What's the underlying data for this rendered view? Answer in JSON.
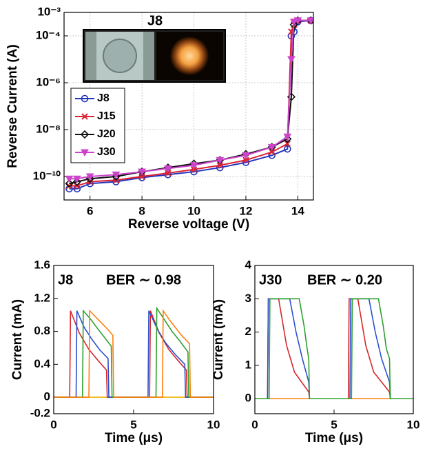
{
  "chart_data": [
    {
      "type": "line",
      "ylabel": "Reverse Current (A)",
      "xlabel": "Reverse voltage (V)",
      "inset_label": "J8",
      "log_y": true,
      "grid": true,
      "legend": "upper left",
      "xlim": [
        5,
        14.6
      ],
      "xticks": [
        6,
        8,
        10,
        12,
        14
      ],
      "ylim": [
        1e-11,
        0.001
      ],
      "yticks": [
        {
          "value": 0.001,
          "label": "10⁻³"
        },
        {
          "value": 0.0001,
          "label": "10⁻⁴"
        },
        {
          "value": 1e-06,
          "label": "10⁻⁶"
        },
        {
          "value": 1e-08,
          "label": "10⁻⁸"
        },
        {
          "value": 1e-10,
          "label": "10⁻¹⁰"
        }
      ],
      "x": [
        5.2,
        5.5,
        6,
        7,
        8,
        9,
        10,
        11,
        12,
        13,
        13.6,
        13.75,
        13.85,
        14,
        14.5
      ],
      "series": [
        {
          "name": "J8",
          "color": "#2233bb",
          "marker": "o",
          "values": [
            3e-11,
            3e-11,
            5e-11,
            6e-11,
            9e-11,
            1.2e-10,
            1.6e-10,
            2.4e-10,
            4e-10,
            8e-10,
            1.5e-09,
            0.0001,
            0.00015,
            0.0004,
            0.00045
          ]
        },
        {
          "name": "J15",
          "color": "#dd2233",
          "marker": "x",
          "values": [
            4e-11,
            4e-11,
            6e-11,
            7e-11,
            1e-10,
            1.4e-10,
            2e-10,
            3e-10,
            5e-10,
            1.1e-09,
            2.5e-09,
            0.00015,
            0.0003,
            0.00045,
            0.00045
          ]
        },
        {
          "name": "J20",
          "color": "#111111",
          "marker": "d",
          "values": [
            5e-11,
            6e-11,
            8e-11,
            1e-10,
            1.6e-10,
            2.4e-10,
            3.5e-10,
            5e-10,
            9e-10,
            1.8e-09,
            4e-09,
            2.5e-07,
            0.0003,
            0.00045,
            0.00045
          ]
        },
        {
          "name": "J30",
          "color": "#cc44cc",
          "marker": "v",
          "values": [
            8e-11,
            8e-11,
            1e-10,
            1.2e-10,
            1.6e-10,
            2.2e-10,
            3e-10,
            5e-10,
            8e-10,
            1.8e-09,
            5e-09,
            1e-05,
            0.0004,
            0.00045,
            0.00045
          ]
        }
      ]
    },
    {
      "type": "line",
      "ylabel": "Current (mA)",
      "xlabel": "Time (μs)",
      "annotations": [
        "J8",
        "BER ∼ 0.98"
      ],
      "grid": false,
      "xlim": [
        0,
        10
      ],
      "xticks": [
        0,
        5,
        10
      ],
      "ylim": [
        -0.2,
        1.6
      ],
      "yticks": [
        -0.2,
        0,
        0.4,
        0.8,
        1.2,
        1.6
      ],
      "series": [
        {
          "color": "#f0b400",
          "x": [
            0,
            10
          ],
          "values": [
            0,
            0
          ]
        },
        {
          "color": "#d62728",
          "x": [
            0,
            1,
            1.05,
            1.6,
            2.2,
            2.8,
            3.3,
            3.35,
            6,
            6.05,
            6.6,
            7.2,
            7.8,
            8.3,
            8.35,
            10
          ],
          "values": [
            0,
            0,
            1.05,
            0.78,
            0.58,
            0.44,
            0.33,
            0,
            0,
            1.05,
            0.78,
            0.58,
            0.44,
            0.33,
            0,
            0
          ]
        },
        {
          "color": "#2a4fd0",
          "x": [
            0,
            1.4,
            1.45,
            1.9,
            2.4,
            2.9,
            3.4,
            3.45,
            5.9,
            5.95,
            6.5,
            7,
            7.6,
            8.2,
            8.25,
            10
          ],
          "values": [
            0,
            0,
            1.05,
            0.85,
            0.7,
            0.57,
            0.47,
            0,
            0,
            1.05,
            0.82,
            0.66,
            0.52,
            0.4,
            0,
            0
          ]
        },
        {
          "color": "#2ca02c",
          "x": [
            0,
            1.8,
            1.85,
            2.3,
            2.8,
            3.2,
            3.6,
            3.65,
            6.4,
            6.45,
            6.9,
            7.4,
            7.9,
            8.4,
            8.45,
            10
          ],
          "values": [
            0,
            0,
            1.05,
            0.95,
            0.82,
            0.72,
            0.62,
            0,
            0,
            1.08,
            0.95,
            0.8,
            0.68,
            0.55,
            0,
            0
          ]
        },
        {
          "color": "#ff7f0e",
          "x": [
            0,
            2.2,
            2.25,
            2.6,
            3,
            3.4,
            3.7,
            3.75,
            6.8,
            6.85,
            7.2,
            7.6,
            8,
            8.5,
            8.55,
            10
          ],
          "values": [
            0,
            0,
            1.05,
            0.98,
            0.9,
            0.82,
            0.75,
            0,
            0,
            1.05,
            0.95,
            0.85,
            0.75,
            0.65,
            0,
            0
          ]
        }
      ]
    },
    {
      "type": "line",
      "ylabel": "Current (mA)",
      "xlabel": "Time (μs)",
      "annotations": [
        "J30",
        "BER ∼ 0.20"
      ],
      "grid": false,
      "xlim": [
        0,
        10
      ],
      "xticks": [
        0,
        5,
        10
      ],
      "ylim": [
        -0.45,
        4
      ],
      "yticks": [
        0,
        1,
        2,
        3,
        4
      ],
      "series": [
        {
          "color": "#ff7f0e",
          "x": [
            0,
            10
          ],
          "values": [
            0,
            0
          ]
        },
        {
          "color": "#d62728",
          "x": [
            0,
            0.8,
            0.85,
            1.5,
            2,
            2.5,
            3.4,
            3.45,
            5.9,
            5.95,
            6.5,
            7,
            7.5,
            8.5,
            8.55,
            10
          ],
          "values": [
            0,
            0,
            3,
            3,
            1.6,
            0.8,
            0.2,
            0,
            0,
            3,
            3,
            1.6,
            0.8,
            0.2,
            0,
            0
          ]
        },
        {
          "color": "#2a4fd0",
          "x": [
            0,
            0.8,
            0.85,
            2.2,
            2.6,
            3,
            3.4,
            3.45,
            6,
            6.05,
            7.2,
            7.6,
            8,
            8.5,
            8.55,
            10
          ],
          "values": [
            0,
            0,
            3,
            3,
            2,
            1.2,
            0.5,
            0,
            0,
            3,
            3,
            2,
            1.2,
            0.5,
            0,
            0
          ]
        },
        {
          "color": "#2ca02c",
          "x": [
            0,
            0.9,
            0.95,
            2.8,
            3.1,
            3.3,
            3.4,
            3.45,
            6.1,
            6.15,
            7.8,
            8.1,
            8.3,
            8.5,
            8.55,
            10
          ],
          "values": [
            0,
            0,
            3,
            3,
            2.2,
            1.5,
            1.2,
            0,
            0,
            3,
            3,
            2.2,
            1.5,
            1.2,
            0,
            0
          ]
        }
      ]
    }
  ]
}
